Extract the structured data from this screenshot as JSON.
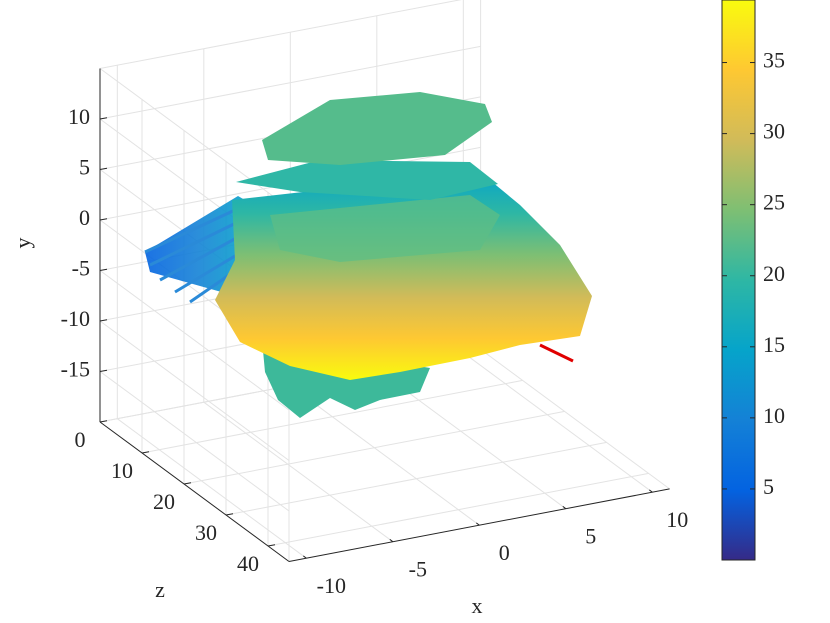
{
  "chart_data": {
    "type": "surface3d",
    "xlabel": "x",
    "ylabel": "y",
    "zlabel": "z",
    "xlim": [
      -11,
      11
    ],
    "xticks": [
      -10,
      -5,
      0,
      5,
      10
    ],
    "ylim": [
      -20,
      15
    ],
    "yticks": [
      -15,
      -10,
      -5,
      0,
      5,
      10
    ],
    "zlim": [
      0,
      45
    ],
    "zticks": [
      0,
      10,
      20,
      30,
      40
    ],
    "grid": true,
    "colorbar": {
      "clim": [
        0,
        39.4
      ],
      "ticks": [
        5,
        10,
        15,
        20,
        25,
        30,
        35
      ]
    },
    "colormap": [
      "#352a87",
      "#0363e1",
      "#1481d6",
      "#06a4ca",
      "#2eb7a4",
      "#7ebf73",
      "#d1bb59",
      "#fec832",
      "#f9fb0e"
    ]
  }
}
